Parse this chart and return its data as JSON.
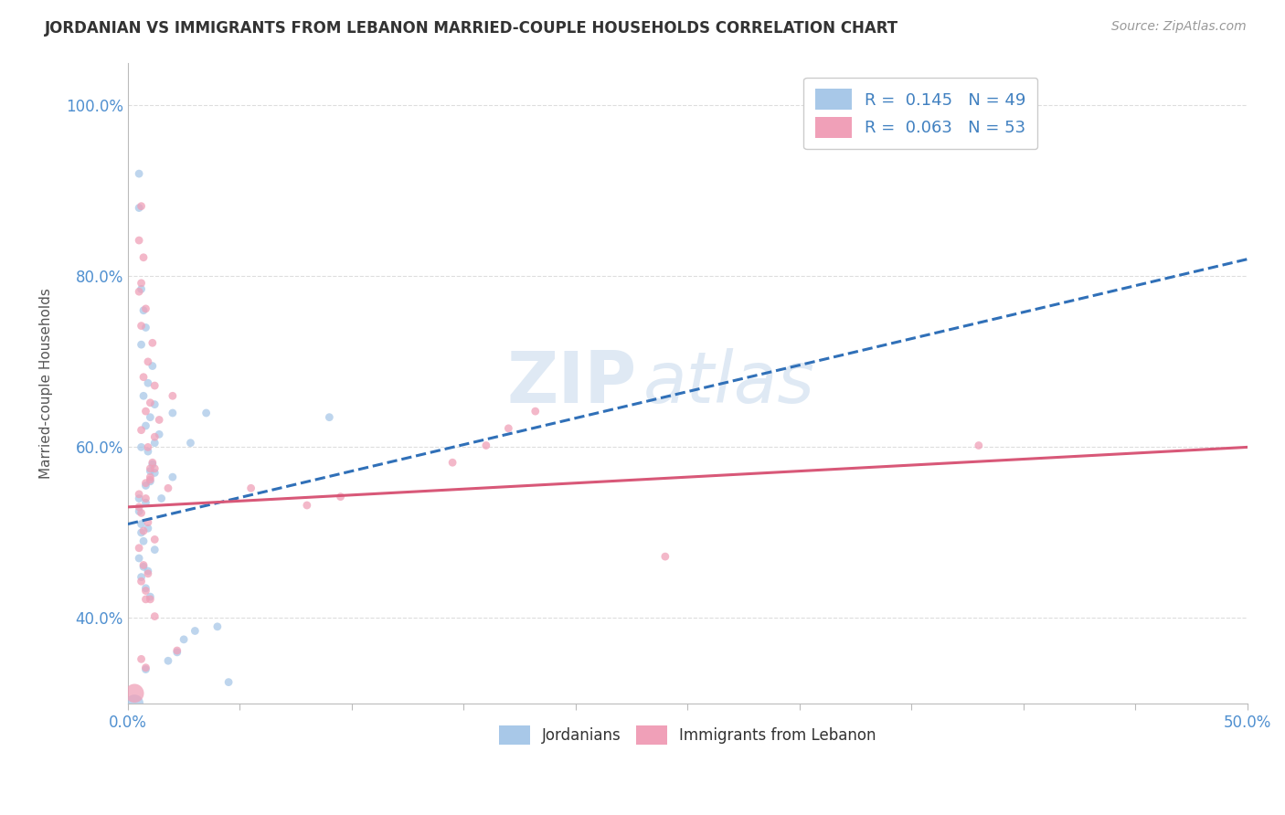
{
  "title": "JORDANIAN VS IMMIGRANTS FROM LEBANON MARRIED-COUPLE HOUSEHOLDS CORRELATION CHART",
  "source": "Source: ZipAtlas.com",
  "ylabel": "Married-couple Households",
  "xlim": [
    0.0,
    0.5
  ],
  "ylim": [
    0.3,
    1.05
  ],
  "ytick_vals": [
    0.4,
    0.6,
    0.8,
    1.0
  ],
  "ytick_labels": [
    "40.0%",
    "60.0%",
    "80.0%",
    "100.0%"
  ],
  "xtick_vals": [
    0.0,
    0.05,
    0.1,
    0.15,
    0.2,
    0.25,
    0.3,
    0.35,
    0.4,
    0.45,
    0.5
  ],
  "xtick_labels": [
    "0.0%",
    "",
    "",
    "",
    "",
    "",
    "",
    "",
    "",
    "",
    "50.0%"
  ],
  "legend_items": [
    {
      "label": "R =  0.145   N = 49",
      "color": "#a8c8e8"
    },
    {
      "label": "R =  0.063   N = 53",
      "color": "#f0a0b8"
    }
  ],
  "jordanians": {
    "x": [
      0.005,
      0.008,
      0.01,
      0.012,
      0.005,
      0.008,
      0.01,
      0.006,
      0.009,
      0.011,
      0.012,
      0.014,
      0.008,
      0.01,
      0.012,
      0.007,
      0.009,
      0.011,
      0.006,
      0.008,
      0.005,
      0.007,
      0.009,
      0.006,
      0.008,
      0.01,
      0.012,
      0.007,
      0.009,
      0.006,
      0.02,
      0.022,
      0.018,
      0.008,
      0.006,
      0.005,
      0.007,
      0.005,
      0.006,
      0.003,
      0.025,
      0.03,
      0.04,
      0.015,
      0.02,
      0.028,
      0.035,
      0.045,
      0.09
    ],
    "y": [
      0.54,
      0.535,
      0.56,
      0.57,
      0.525,
      0.555,
      0.572,
      0.6,
      0.595,
      0.58,
      0.605,
      0.615,
      0.625,
      0.635,
      0.65,
      0.66,
      0.675,
      0.695,
      0.72,
      0.74,
      0.47,
      0.46,
      0.455,
      0.448,
      0.435,
      0.425,
      0.48,
      0.49,
      0.505,
      0.51,
      0.64,
      0.36,
      0.35,
      0.34,
      0.785,
      0.88,
      0.76,
      0.92,
      0.5,
      0.3,
      0.375,
      0.385,
      0.39,
      0.54,
      0.565,
      0.605,
      0.64,
      0.325,
      0.635
    ],
    "sizes": [
      40,
      40,
      40,
      40,
      40,
      40,
      40,
      40,
      40,
      40,
      40,
      40,
      40,
      40,
      40,
      40,
      40,
      40,
      40,
      40,
      40,
      40,
      40,
      40,
      40,
      40,
      40,
      40,
      40,
      40,
      40,
      40,
      40,
      40,
      40,
      40,
      40,
      40,
      40,
      200,
      40,
      40,
      40,
      40,
      40,
      40,
      40,
      40,
      40
    ],
    "color": "#a8c8e8",
    "trendline_color": "#3070b8",
    "trendline_style": "--",
    "trend_x": [
      0.0,
      0.5
    ],
    "trend_y": [
      0.51,
      0.82
    ]
  },
  "lebanon": {
    "x": [
      0.005,
      0.008,
      0.01,
      0.012,
      0.005,
      0.008,
      0.01,
      0.006,
      0.009,
      0.011,
      0.012,
      0.014,
      0.008,
      0.01,
      0.012,
      0.007,
      0.009,
      0.011,
      0.006,
      0.008,
      0.005,
      0.007,
      0.009,
      0.006,
      0.008,
      0.01,
      0.012,
      0.007,
      0.009,
      0.006,
      0.02,
      0.022,
      0.018,
      0.008,
      0.006,
      0.005,
      0.007,
      0.005,
      0.006,
      0.003,
      0.055,
      0.095,
      0.08,
      0.38,
      0.012,
      0.008,
      0.006,
      0.24,
      0.01,
      0.145,
      0.16,
      0.17,
      0.182
    ],
    "y": [
      0.545,
      0.54,
      0.565,
      0.575,
      0.53,
      0.558,
      0.575,
      0.62,
      0.6,
      0.582,
      0.612,
      0.632,
      0.642,
      0.652,
      0.672,
      0.682,
      0.7,
      0.722,
      0.742,
      0.762,
      0.482,
      0.462,
      0.452,
      0.443,
      0.432,
      0.422,
      0.492,
      0.502,
      0.512,
      0.523,
      0.66,
      0.362,
      0.552,
      0.342,
      0.792,
      0.782,
      0.822,
      0.842,
      0.882,
      0.312,
      0.552,
      0.542,
      0.532,
      0.602,
      0.402,
      0.422,
      0.352,
      0.472,
      0.562,
      0.582,
      0.602,
      0.622,
      0.642
    ],
    "sizes": [
      40,
      40,
      40,
      40,
      40,
      40,
      40,
      40,
      40,
      40,
      40,
      40,
      40,
      40,
      40,
      40,
      40,
      40,
      40,
      40,
      40,
      40,
      40,
      40,
      40,
      40,
      40,
      40,
      40,
      40,
      40,
      40,
      40,
      40,
      40,
      40,
      40,
      40,
      40,
      220,
      40,
      40,
      40,
      40,
      40,
      40,
      40,
      40,
      40,
      40,
      40,
      40,
      40
    ],
    "color": "#f0a0b8",
    "trendline_color": "#d85878",
    "trendline_style": "-",
    "trend_x": [
      0.0,
      0.5
    ],
    "trend_y": [
      0.53,
      0.6
    ]
  },
  "watermark_zip": "ZIP",
  "watermark_atlas": "atlas",
  "background_color": "#ffffff",
  "grid_color": "#dddddd"
}
